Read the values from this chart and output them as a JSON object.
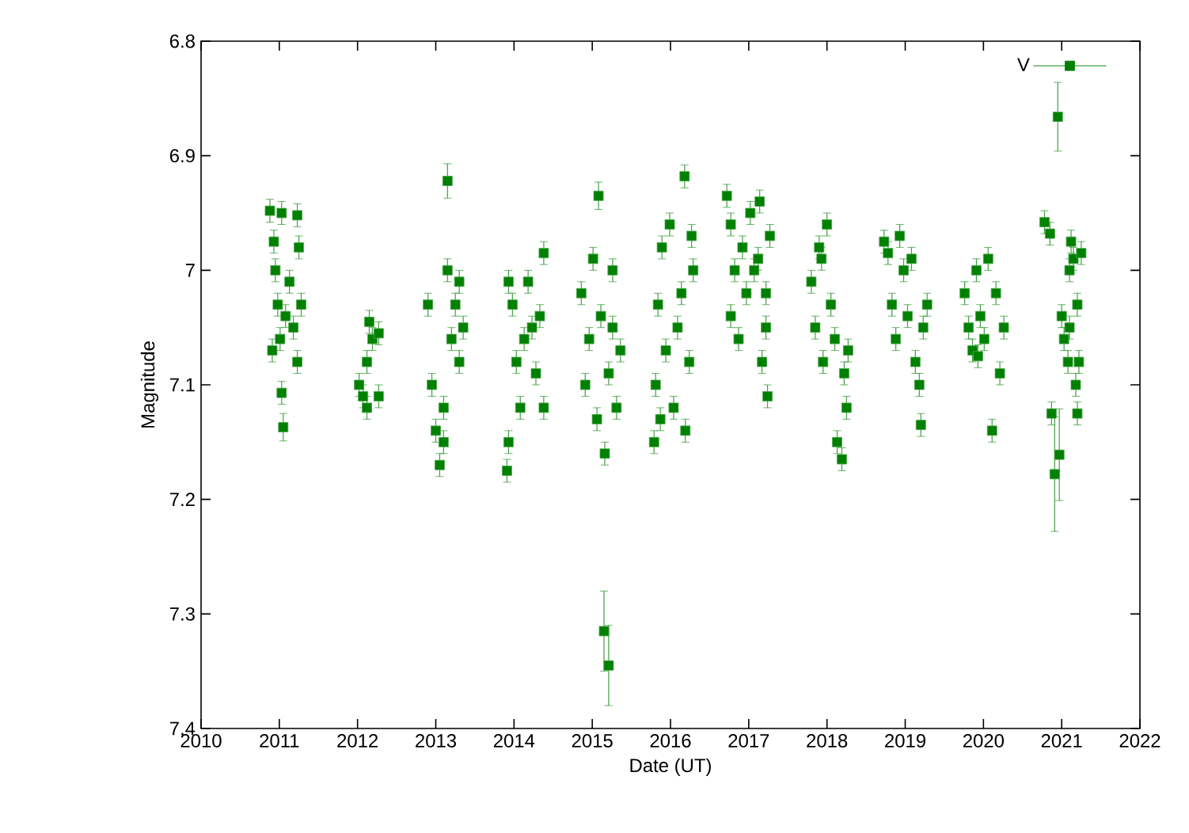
{
  "chart_data": {
    "type": "scatter",
    "xlabel": "Date (UT)",
    "ylabel": "Magnitude",
    "xlim": [
      2010,
      2022
    ],
    "ylim": [
      7.4,
      6.8
    ],
    "xticks": [
      2010,
      2011,
      2012,
      2013,
      2014,
      2015,
      2016,
      2017,
      2018,
      2019,
      2020,
      2021,
      2022
    ],
    "yticks": [
      6.8,
      6.9,
      7,
      7.1,
      7.2,
      7.3,
      7.4
    ],
    "marker": "square",
    "legend": "top right",
    "grid": false,
    "series": [
      {
        "name": "V",
        "color": "#008000",
        "x": [
          2010.88,
          2010.93,
          2010.95,
          2010.98,
          2011.01,
          2011.03,
          2011.05,
          2011.08,
          2011.13,
          2011.18,
          2011.23,
          2011.25,
          2011.28,
          2011.23,
          2010.91,
          2011.03,
          2012.02,
          2012.07,
          2012.12,
          2012.15,
          2012.19,
          2012.27,
          2012.27,
          2012.12,
          2012.9,
          2012.95,
          2013.0,
          2013.05,
          2013.1,
          2013.15,
          2013.2,
          2013.25,
          2013.3,
          2013.35,
          2013.15,
          2013.1,
          2013.3,
          2013.91,
          2013.93,
          2013.98,
          2014.03,
          2014.08,
          2014.13,
          2014.18,
          2014.23,
          2014.28,
          2014.38,
          2014.38,
          2014.33,
          2013.93,
          2014.86,
          2014.91,
          2014.96,
          2015.01,
          2015.06,
          2015.11,
          2015.16,
          2015.21,
          2015.26,
          2015.31,
          2015.36,
          2015.08,
          2015.15,
          2015.21,
          2015.26,
          2015.79,
          2015.81,
          2015.84,
          2015.89,
          2015.94,
          2015.99,
          2016.04,
          2016.09,
          2016.14,
          2016.19,
          2016.24,
          2016.27,
          2016.18,
          2016.29,
          2015.87,
          2016.72,
          2016.77,
          2016.77,
          2016.82,
          2016.87,
          2016.92,
          2016.97,
          2017.02,
          2017.07,
          2017.12,
          2017.17,
          2017.22,
          2017.24,
          2017.27,
          2017.14,
          2017.22,
          2017.8,
          2017.85,
          2017.9,
          2017.95,
          2018.0,
          2018.05,
          2018.1,
          2018.13,
          2018.19,
          2018.22,
          2018.25,
          2018.27,
          2017.93,
          2018.78,
          2018.83,
          2018.88,
          2018.93,
          2018.98,
          2019.03,
          2019.08,
          2019.13,
          2019.18,
          2019.2,
          2019.28,
          2019.23,
          2018.73,
          2019.76,
          2019.81,
          2019.86,
          2019.91,
          2019.96,
          2020.01,
          2020.06,
          2020.11,
          2020.16,
          2020.21,
          2020.26,
          2019.93,
          2020.78,
          2020.85,
          2020.87,
          2020.97,
          2020.91,
          2020.95,
          2021.0,
          2021.03,
          2021.1,
          2021.1,
          2021.12,
          2021.15,
          2021.18,
          2021.2,
          2021.22,
          2021.25,
          2021.2,
          2021.08
        ],
        "values": [
          6.948,
          6.975,
          7.0,
          7.03,
          7.06,
          7.107,
          7.137,
          7.04,
          7.01,
          7.05,
          6.952,
          6.98,
          7.03,
          7.08,
          7.07,
          6.95,
          7.1,
          7.11,
          7.08,
          7.045,
          7.06,
          7.055,
          7.11,
          7.12,
          7.03,
          7.1,
          7.14,
          7.17,
          7.15,
          7.0,
          7.06,
          7.03,
          7.08,
          7.05,
          6.922,
          7.12,
          7.01,
          7.175,
          7.15,
          7.03,
          7.08,
          7.12,
          7.06,
          7.01,
          7.05,
          7.09,
          6.985,
          7.12,
          7.04,
          7.01,
          7.02,
          7.1,
          7.06,
          6.99,
          7.13,
          7.04,
          7.16,
          7.09,
          7.05,
          7.12,
          7.07,
          6.935,
          7.315,
          7.345,
          7.0,
          7.15,
          7.1,
          7.03,
          6.98,
          7.07,
          6.96,
          7.12,
          7.05,
          7.02,
          7.14,
          7.08,
          6.97,
          6.918,
          7.0,
          7.13,
          6.935,
          6.96,
          7.04,
          7.0,
          7.06,
          6.98,
          7.02,
          6.95,
          7.0,
          6.99,
          7.08,
          7.05,
          7.11,
          6.97,
          6.94,
          7.02,
          7.01,
          7.05,
          6.98,
          7.08,
          6.96,
          7.03,
          7.06,
          7.15,
          7.165,
          7.09,
          7.12,
          7.07,
          6.99,
          6.985,
          7.03,
          7.06,
          6.97,
          7.0,
          7.04,
          6.99,
          7.08,
          7.1,
          7.135,
          7.03,
          7.05,
          6.975,
          7.02,
          7.05,
          7.07,
          7.0,
          7.04,
          7.06,
          6.99,
          7.14,
          7.02,
          7.09,
          7.05,
          7.075,
          6.958,
          6.968,
          7.125,
          7.161,
          7.178,
          6.866,
          7.04,
          7.06,
          7.0,
          7.05,
          6.975,
          6.99,
          7.1,
          7.125,
          7.08,
          6.985,
          7.03,
          7.08
        ],
        "errors": [
          0.01,
          0.01,
          0.01,
          0.01,
          0.01,
          0.01,
          0.012,
          0.01,
          0.01,
          0.01,
          0.01,
          0.01,
          0.01,
          0.01,
          0.01,
          0.01,
          0.01,
          0.01,
          0.01,
          0.01,
          0.01,
          0.01,
          0.01,
          0.01,
          0.01,
          0.01,
          0.01,
          0.01,
          0.01,
          0.01,
          0.01,
          0.01,
          0.01,
          0.01,
          0.015,
          0.01,
          0.01,
          0.01,
          0.01,
          0.01,
          0.01,
          0.01,
          0.01,
          0.01,
          0.01,
          0.01,
          0.01,
          0.01,
          0.01,
          0.01,
          0.01,
          0.01,
          0.01,
          0.01,
          0.01,
          0.01,
          0.01,
          0.01,
          0.01,
          0.01,
          0.01,
          0.012,
          0.035,
          0.035,
          0.01,
          0.01,
          0.01,
          0.01,
          0.01,
          0.01,
          0.01,
          0.01,
          0.01,
          0.01,
          0.01,
          0.01,
          0.01,
          0.01,
          0.01,
          0.01,
          0.01,
          0.01,
          0.01,
          0.01,
          0.01,
          0.01,
          0.01,
          0.01,
          0.01,
          0.01,
          0.01,
          0.01,
          0.01,
          0.01,
          0.01,
          0.01,
          0.01,
          0.01,
          0.01,
          0.01,
          0.01,
          0.01,
          0.01,
          0.01,
          0.01,
          0.01,
          0.01,
          0.01,
          0.01,
          0.01,
          0.01,
          0.01,
          0.01,
          0.01,
          0.01,
          0.01,
          0.01,
          0.01,
          0.01,
          0.01,
          0.01,
          0.01,
          0.01,
          0.01,
          0.01,
          0.01,
          0.01,
          0.01,
          0.01,
          0.01,
          0.01,
          0.01,
          0.01,
          0.01,
          0.01,
          0.01,
          0.01,
          0.04,
          0.05,
          0.03,
          0.01,
          0.01,
          0.01,
          0.01,
          0.01,
          0.01,
          0.01,
          0.01,
          0.01,
          0.01,
          0.01,
          0.01
        ]
      }
    ]
  }
}
